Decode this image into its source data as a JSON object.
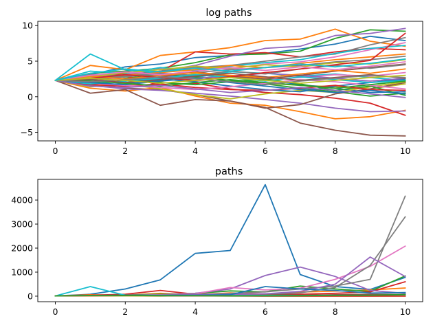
{
  "chart_data": [
    {
      "type": "line",
      "title": "log paths",
      "xlabel": "",
      "ylabel": "",
      "xlim": [
        -0.5,
        10.5
      ],
      "ylim": [
        -6.2,
        10.6
      ],
      "x_ticks": [
        0,
        2,
        4,
        6,
        8,
        10
      ],
      "y_ticks": [
        -5,
        0,
        5,
        10
      ],
      "grid": false,
      "x": [
        0,
        1,
        2,
        3,
        4,
        5,
        6,
        7,
        8,
        9,
        10
      ],
      "series": [
        {
          "color": "#1f77b4",
          "values": [
            2.3,
            3.1,
            4.2,
            4.6,
            5.5,
            5.8,
            6.1,
            6.7,
            7.4,
            8.5,
            7.9
          ]
        },
        {
          "color": "#ff7f0e",
          "values": [
            2.3,
            4.4,
            3.8,
            5.8,
            6.3,
            6.9,
            7.9,
            8.1,
            9.5,
            7.8,
            7.1
          ]
        },
        {
          "color": "#2ca02c",
          "values": [
            2.3,
            3.3,
            3.6,
            4.0,
            4.8,
            5.9,
            6.0,
            6.4,
            8.2,
            9.4,
            9.2
          ]
        },
        {
          "color": "#d62728",
          "values": [
            2.3,
            2.9,
            3.2,
            3.5,
            6.3,
            6.0,
            6.2,
            5.6,
            6.3,
            6.8,
            6.6
          ]
        },
        {
          "color": "#9467bd",
          "values": [
            2.3,
            2.6,
            3.0,
            3.6,
            4.4,
            5.7,
            6.8,
            7.1,
            8.6,
            8.9,
            9.6
          ]
        },
        {
          "color": "#8c564b",
          "values": [
            2.3,
            1.8,
            1.2,
            1.0,
            0.3,
            -0.6,
            -1.5,
            -3.7,
            -4.7,
            -5.4,
            -5.5
          ]
        },
        {
          "color": "#e377c2",
          "values": [
            2.3,
            2.7,
            3.1,
            3.9,
            4.1,
            3.9,
            4.6,
            4.9,
            5.6,
            6.6,
            7.6
          ]
        },
        {
          "color": "#7f7f7f",
          "values": [
            2.3,
            3.1,
            3.0,
            3.6,
            4.1,
            4.4,
            5.0,
            5.6,
            6.0,
            7.3,
            8.3
          ]
        },
        {
          "color": "#bcbd22",
          "values": [
            2.3,
            2.0,
            2.6,
            2.1,
            3.3,
            2.8,
            1.9,
            1.6,
            1.4,
            1.1,
            1.8
          ]
        },
        {
          "color": "#17becf",
          "values": [
            2.3,
            6.0,
            3.8,
            3.3,
            2.7,
            3.5,
            3.3,
            2.9,
            3.2,
            2.7,
            2.3
          ]
        },
        {
          "color": "#1f77b4",
          "values": [
            2.3,
            1.5,
            1.9,
            2.3,
            3.1,
            2.7,
            2.4,
            1.7,
            1.2,
            0.6,
            0.7
          ]
        },
        {
          "color": "#ff7f0e",
          "values": [
            2.3,
            1.2,
            0.8,
            1.3,
            0.1,
            -0.9,
            -1.2,
            -2.1,
            -3.1,
            -2.8,
            -1.9
          ]
        },
        {
          "color": "#2ca02c",
          "values": [
            2.3,
            1.9,
            2.6,
            3.1,
            2.8,
            2.3,
            1.8,
            1.2,
            0.7,
            0.1,
            0.5
          ]
        },
        {
          "color": "#d62728",
          "values": [
            2.3,
            2.1,
            2.9,
            1.6,
            1.9,
            1.1,
            0.6,
            0.3,
            -0.2,
            -0.9,
            -2.6
          ]
        },
        {
          "color": "#9467bd",
          "values": [
            2.3,
            1.6,
            1.1,
            0.9,
            0.5,
            0.1,
            -0.4,
            -0.9,
            -1.6,
            -2.1,
            -2.0
          ]
        },
        {
          "color": "#8c564b",
          "values": [
            2.3,
            0.5,
            1.0,
            -1.2,
            -0.4,
            -0.6,
            -1.6,
            -1.1,
            0.4,
            1.1,
            2.0
          ]
        },
        {
          "color": "#e377c2",
          "values": [
            2.3,
            2.8,
            2.4,
            3.0,
            2.2,
            2.8,
            2.4,
            2.7,
            3.1,
            2.9,
            3.4
          ]
        },
        {
          "color": "#7f7f7f",
          "values": [
            2.3,
            2.4,
            2.8,
            3.2,
            3.4,
            3.8,
            4.1,
            4.4,
            4.9,
            5.2,
            5.7
          ]
        },
        {
          "color": "#bcbd22",
          "values": [
            2.3,
            1.4,
            1.8,
            1.1,
            0.3,
            -0.3,
            0.4,
            0.9,
            0.6,
            1.4,
            2.1
          ]
        },
        {
          "color": "#17becf",
          "values": [
            2.3,
            3.6,
            3.3,
            4.1,
            3.7,
            4.3,
            4.8,
            5.2,
            6.1,
            6.8,
            7.2
          ]
        },
        {
          "color": "#1f77b4",
          "values": [
            2.3,
            2.2,
            2.0,
            2.5,
            2.1,
            1.5,
            1.0,
            0.7,
            1.5,
            2.0,
            2.5
          ]
        },
        {
          "color": "#ff7f0e",
          "values": [
            2.3,
            2.6,
            3.0,
            3.4,
            3.8,
            4.4,
            4.1,
            4.7,
            5.2,
            5.6,
            6.0
          ]
        },
        {
          "color": "#2ca02c",
          "values": [
            2.3,
            2.1,
            2.4,
            2.0,
            1.7,
            2.1,
            2.5,
            1.8,
            0.9,
            1.5,
            0.2
          ]
        },
        {
          "color": "#d62728",
          "values": [
            2.3,
            1.7,
            1.5,
            1.8,
            1.3,
            1.0,
            0.9,
            1.2,
            1.6,
            1.0,
            0.9
          ]
        },
        {
          "color": "#9467bd",
          "values": [
            2.3,
            2.9,
            3.5,
            3.0,
            2.6,
            2.9,
            3.3,
            3.0,
            2.6,
            2.2,
            2.6
          ]
        },
        {
          "color": "#8c564b",
          "values": [
            2.3,
            2.6,
            2.2,
            2.8,
            3.5,
            2.9,
            2.5,
            3.0,
            3.6,
            4.1,
            4.6
          ]
        },
        {
          "color": "#e377c2",
          "values": [
            2.3,
            1.9,
            1.6,
            1.3,
            1.0,
            1.4,
            1.9,
            2.4,
            2.1,
            1.6,
            1.1
          ]
        },
        {
          "color": "#7f7f7f",
          "values": [
            2.3,
            2.5,
            2.9,
            3.3,
            3.0,
            3.6,
            3.2,
            3.9,
            4.4,
            4.0,
            4.5
          ]
        },
        {
          "color": "#bcbd22",
          "values": [
            2.3,
            2.8,
            3.4,
            3.8,
            4.3,
            4.0,
            4.5,
            4.2,
            4.8,
            4.6,
            5.2
          ]
        },
        {
          "color": "#17becf",
          "values": [
            2.3,
            1.8,
            2.2,
            2.6,
            3.1,
            2.7,
            2.2,
            2.8,
            2.4,
            2.0,
            2.3
          ]
        },
        {
          "color": "#1f77b4",
          "values": [
            2.3,
            2.0,
            1.7,
            2.2,
            2.6,
            2.0,
            1.5,
            1.0,
            0.6,
            0.9,
            0.4
          ]
        },
        {
          "color": "#ff7f0e",
          "values": [
            2.3,
            2.9,
            2.5,
            3.0,
            3.4,
            3.0,
            2.7,
            3.2,
            3.7,
            3.3,
            3.9
          ]
        },
        {
          "color": "#2ca02c",
          "values": [
            2.3,
            2.2,
            1.9,
            1.5,
            2.0,
            2.4,
            2.0,
            1.6,
            1.2,
            1.7,
            2.2
          ]
        },
        {
          "color": "#d62728",
          "values": [
            2.3,
            2.6,
            3.1,
            2.7,
            2.3,
            2.8,
            3.4,
            3.9,
            4.5,
            5.1,
            8.9
          ]
        },
        {
          "color": "#9467bd",
          "values": [
            2.3,
            1.5,
            1.3,
            1.6,
            1.1,
            0.6,
            0.9,
            1.3,
            0.9,
            0.4,
            -0.1
          ]
        },
        {
          "color": "#8c564b",
          "values": [
            2.3,
            2.4,
            2.0,
            2.4,
            2.9,
            3.3,
            2.8,
            2.3,
            2.7,
            3.1,
            2.6
          ]
        },
        {
          "color": "#e377c2",
          "values": [
            2.3,
            3.0,
            3.5,
            3.1,
            3.6,
            4.1,
            3.7,
            4.2,
            3.8,
            4.3,
            4.9
          ]
        },
        {
          "color": "#7f7f7f",
          "values": [
            2.3,
            2.1,
            2.4,
            2.8,
            2.5,
            2.1,
            1.7,
            2.2,
            2.6,
            3.0,
            2.7
          ]
        },
        {
          "color": "#bcbd22",
          "values": [
            2.3,
            2.6,
            2.3,
            1.9,
            2.3,
            2.7,
            2.3,
            1.9,
            2.3,
            2.7,
            3.0
          ]
        },
        {
          "color": "#17becf",
          "values": [
            2.3,
            3.3,
            3.9,
            3.5,
            4.0,
            3.6,
            4.1,
            4.6,
            4.2,
            4.7,
            5.3
          ]
        }
      ]
    },
    {
      "type": "line",
      "title": "paths",
      "xlabel": "",
      "ylabel": "",
      "xlim": [
        -0.5,
        10.5
      ],
      "ylim": [
        -230,
        4860
      ],
      "x_ticks": [
        0,
        2,
        4,
        6,
        8,
        10
      ],
      "y_ticks": [
        0,
        1000,
        2000,
        3000,
        4000
      ],
      "grid": false,
      "x": [
        0,
        1,
        2,
        3,
        4,
        5,
        6,
        7,
        8,
        9,
        10
      ],
      "series": [
        {
          "color": "#1f77b4",
          "values": [
            10,
            80,
            300,
            680,
            1780,
            1900,
            4640,
            900,
            400,
            280,
            780
          ]
        },
        {
          "color": "#ff7f0e",
          "values": [
            10,
            60,
            40,
            120,
            60,
            140,
            90,
            170,
            210,
            260,
            340
          ]
        },
        {
          "color": "#2ca02c",
          "values": [
            10,
            30,
            50,
            80,
            120,
            220,
            180,
            420,
            300,
            200,
            840
          ]
        },
        {
          "color": "#d62728",
          "values": [
            10,
            40,
            80,
            240,
            80,
            100,
            70,
            80,
            120,
            180,
            600
          ]
        },
        {
          "color": "#9467bd",
          "values": [
            10,
            20,
            40,
            60,
            120,
            300,
            860,
            1210,
            820,
            240,
            120
          ]
        },
        {
          "color": "#8c564b",
          "values": [
            10,
            30,
            60,
            30,
            20,
            40,
            80,
            40,
            60,
            80,
            70
          ]
        },
        {
          "color": "#e377c2",
          "values": [
            10,
            20,
            30,
            60,
            100,
            360,
            260,
            330,
            700,
            1240,
            2080
          ]
        },
        {
          "color": "#7f7f7f",
          "values": [
            10,
            20,
            30,
            40,
            60,
            120,
            180,
            300,
            420,
            700,
            4160
          ]
        },
        {
          "color": "#7f7f7f",
          "values": [
            10,
            30,
            20,
            50,
            80,
            60,
            90,
            140,
            360,
            1280,
            3300
          ]
        },
        {
          "color": "#9467bd",
          "values": [
            10,
            20,
            30,
            40,
            60,
            80,
            100,
            200,
            500,
            1630,
            820
          ]
        },
        {
          "color": "#17becf",
          "values": [
            10,
            400,
            40,
            30,
            20,
            30,
            30,
            20,
            25,
            20,
            15
          ]
        },
        {
          "color": "#1f77b4",
          "values": [
            10,
            10,
            20,
            30,
            40,
            60,
            400,
            300,
            240,
            130,
            150
          ]
        },
        {
          "color": "#bcbd22",
          "values": [
            10,
            10,
            12,
            8,
            20,
            15,
            8,
            5,
            4,
            3,
            8
          ]
        },
        {
          "color": "#d62728",
          "values": [
            10,
            20,
            25,
            15,
            12,
            8,
            5,
            4,
            3,
            2,
            1
          ]
        },
        {
          "color": "#2ca02c",
          "values": [
            10,
            25,
            30,
            20,
            15,
            10,
            12,
            20,
            30,
            40,
            70
          ]
        }
      ]
    }
  ]
}
